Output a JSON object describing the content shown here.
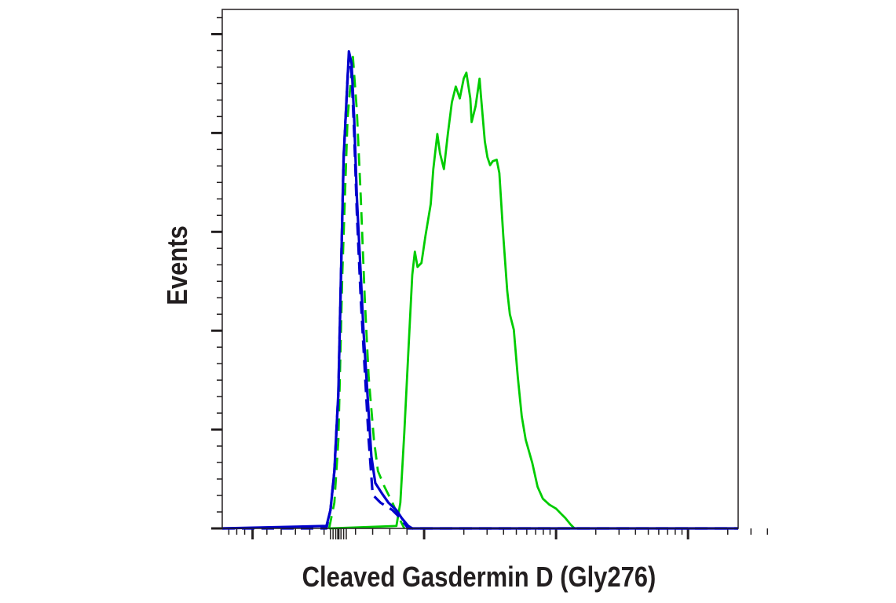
{
  "chart_data": {
    "type": "line",
    "title": "",
    "xlabel": "Cleaved Gasdermin D (Gly276)",
    "ylabel": "Events",
    "x_scale": "biexponential (log decades, unlabeled ticks)",
    "xlim": [
      1.47,
      5.38
    ],
    "ylim": [
      0,
      105
    ],
    "x_major_ticks": [
      1.7,
      2.35,
      3,
      4,
      5
    ],
    "y_major_ticks": [
      0,
      20,
      40,
      60,
      80,
      100
    ],
    "grid": false,
    "legend": "none",
    "series": [
      {
        "color": "#00cc00",
        "style": "solid",
        "x": [
          2.28,
          2.79,
          2.82,
          2.85,
          2.88,
          2.91,
          2.93,
          2.95,
          2.98,
          3.01,
          3.05,
          3.07,
          3.1,
          3.12,
          3.15,
          3.18,
          3.21,
          3.24,
          3.27,
          3.3,
          3.32,
          3.35,
          3.36,
          3.39,
          3.42,
          3.43,
          3.46,
          3.48,
          3.5,
          3.52,
          3.55,
          3.57,
          3.6,
          3.63,
          3.65,
          3.68,
          3.71,
          3.74,
          3.77,
          3.82,
          3.86,
          3.9,
          3.95,
          4.0,
          4.04,
          4.07,
          4.11,
          4.14
        ],
        "y": [
          0,
          0.5,
          5.2,
          19.5,
          35.4,
          51.3,
          56,
          52.9,
          53.7,
          59.2,
          65.6,
          72.7,
          79.8,
          75.9,
          72.7,
          79.8,
          86.2,
          89.4,
          87,
          91,
          92.2,
          87,
          82.2,
          85.4,
          91,
          87.8,
          78.3,
          75.1,
          73.5,
          74.3,
          74.6,
          71.9,
          59.2,
          48.1,
          43.3,
          40.2,
          30.6,
          22.7,
          17.9,
          13.2,
          8.4,
          6,
          4.8,
          4,
          2.9,
          2.1,
          0.8,
          0
        ]
      },
      {
        "color": "#00cc00",
        "style": "dashed",
        "x": [
          2.28,
          2.32,
          2.35,
          2.38,
          2.42,
          2.46,
          2.49,
          2.52,
          2.55,
          2.58,
          2.62,
          2.65,
          2.7,
          2.76,
          2.81,
          2.85
        ],
        "y": [
          0,
          5.2,
          17.9,
          51.3,
          83,
          95.4,
          84.6,
          67.1,
          46.5,
          30.6,
          17.9,
          11.6,
          8.4,
          5.2,
          2.1,
          0
        ]
      },
      {
        "color": "#0000cc",
        "style": "dashed",
        "x": [
          1.47,
          2.26,
          2.29,
          2.32,
          2.35,
          2.37,
          2.39,
          2.42,
          2.43,
          2.45,
          2.47,
          2.49,
          2.52,
          2.55,
          2.58,
          2.61,
          2.67,
          2.76,
          2.82,
          2.88,
          5.38
        ],
        "y": [
          0,
          0,
          3.7,
          11.6,
          27.5,
          51.3,
          75.1,
          91,
          95.7,
          92,
          80,
          64,
          46.5,
          32.1,
          17.9,
          6.8,
          5.2,
          3.7,
          2.1,
          0,
          0
        ]
      },
      {
        "color": "#0000cc",
        "style": "solid",
        "x": [
          1.47,
          2.26,
          2.29,
          2.32,
          2.35,
          2.37,
          2.39,
          2.42,
          2.43,
          2.45,
          2.47,
          2.49,
          2.52,
          2.54,
          2.57,
          2.6,
          2.63,
          2.68,
          2.73,
          2.79,
          2.83,
          2.88,
          2.91,
          5.38
        ],
        "y": [
          0,
          0.5,
          3.7,
          11.6,
          27.5,
          51.3,
          75.1,
          91,
          96.5,
          94.1,
          83,
          67.1,
          51.3,
          40.2,
          27.5,
          14.6,
          9.2,
          7.1,
          5.2,
          3.7,
          2.1,
          0.5,
          0,
          0
        ]
      }
    ]
  }
}
